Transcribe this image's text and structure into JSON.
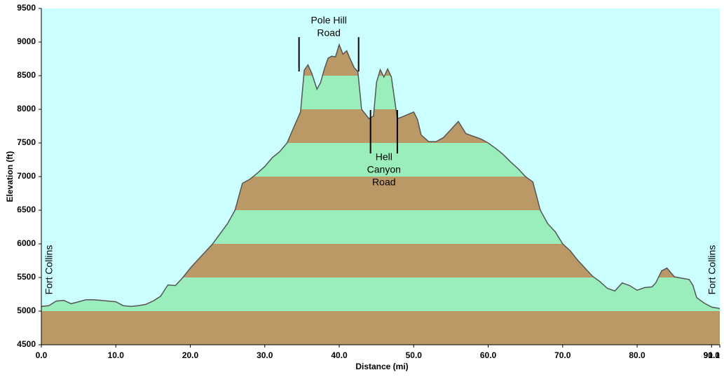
{
  "chart_data": {
    "type": "area",
    "x_label": "Distance  (mi)",
    "y_label": "Elevation (ft)",
    "x": [
      0,
      1,
      2,
      3,
      4,
      5,
      6,
      7,
      8,
      9,
      10,
      11,
      12,
      13,
      14,
      15,
      16,
      17,
      18,
      19,
      20,
      21,
      22,
      23,
      24,
      25,
      26,
      27,
      28,
      29,
      30,
      31,
      32,
      33,
      34,
      34.8,
      35.3,
      35.8,
      36.3,
      37,
      37.5,
      38,
      38.5,
      39,
      39.5,
      40,
      40.5,
      41,
      41.5,
      42,
      42.5,
      43,
      44,
      44.6,
      45,
      45.5,
      46,
      46.5,
      47,
      47.8,
      48.5,
      50,
      50.5,
      51,
      52,
      53,
      54,
      55,
      56,
      57,
      58,
      59,
      60,
      61,
      62,
      63,
      64,
      65,
      66,
      67,
      68,
      69,
      70,
      71,
      72,
      73,
      74,
      75,
      76,
      77,
      78,
      79,
      80,
      81,
      82,
      82.5,
      83.3,
      84,
      85,
      86,
      87,
      87.5,
      88,
      89,
      90,
      91.1
    ],
    "values": [
      5070,
      5080,
      5150,
      5160,
      5110,
      5140,
      5170,
      5170,
      5160,
      5150,
      5140,
      5080,
      5070,
      5080,
      5100,
      5150,
      5220,
      5390,
      5380,
      5500,
      5640,
      5760,
      5880,
      6000,
      6150,
      6300,
      6500,
      6900,
      6960,
      7050,
      7150,
      7280,
      7370,
      7500,
      7760,
      7960,
      8580,
      8660,
      8540,
      8300,
      8400,
      8600,
      8760,
      8790,
      8780,
      8960,
      8820,
      8870,
      8740,
      8620,
      8560,
      8000,
      7860,
      7900,
      8400,
      8590,
      8480,
      8600,
      8480,
      7860,
      7890,
      7960,
      7850,
      7620,
      7520,
      7520,
      7580,
      7700,
      7820,
      7640,
      7600,
      7560,
      7500,
      7420,
      7330,
      7220,
      7120,
      7000,
      6920,
      6500,
      6300,
      6180,
      6000,
      5900,
      5760,
      5640,
      5520,
      5440,
      5340,
      5300,
      5420,
      5380,
      5310,
      5350,
      5360,
      5420,
      5600,
      5640,
      5510,
      5490,
      5470,
      5380,
      5200,
      5120,
      5060,
      5040
    ],
    "band_colors": [
      "#bb9966",
      "#99eebb"
    ],
    "line_color": "#555555",
    "background": "#ccffff",
    "xlim": [
      0,
      91.1
    ],
    "ylim": [
      4500,
      9500
    ],
    "xticks": [
      {
        "value": 0,
        "label": "0.0"
      },
      {
        "value": 10,
        "label": "10.0"
      },
      {
        "value": 20,
        "label": "20.0"
      },
      {
        "value": 30,
        "label": "30.0"
      },
      {
        "value": 40,
        "label": "40.0"
      },
      {
        "value": 50,
        "label": "50.0"
      },
      {
        "value": 60,
        "label": "60.0"
      },
      {
        "value": 70,
        "label": "70.0"
      },
      {
        "value": 80,
        "label": "80.0"
      },
      {
        "value": 90,
        "label": "90.0"
      },
      91.1
    ],
    "yticks": [
      4500,
      5000,
      5500,
      6000,
      6500,
      7000,
      7500,
      8000,
      8500,
      9000,
      9500
    ],
    "annotations": [
      {
        "text": [
          "Pole Hill",
          "Road"
        ],
        "x": [
          34.6,
          42.6
        ]
      },
      {
        "text": [
          "Hell",
          "Canyon",
          "Road"
        ],
        "x": [
          44.2,
          47.8
        ]
      }
    ],
    "end_labels": [
      "Fort Collins",
      "Fort Collins"
    ]
  }
}
